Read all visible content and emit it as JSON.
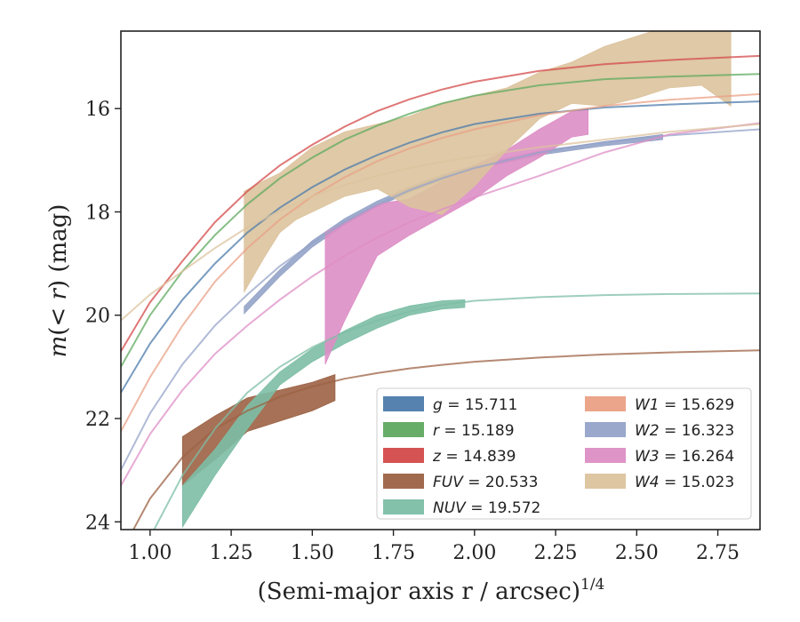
{
  "chart_data": {
    "type": "area",
    "xlabel": "(Semi-major axis r / arcsec)",
    "xlabel_sup": "1/4",
    "ylabel_parts": [
      "m",
      "(< ",
      "r",
      ") (mag)"
    ],
    "xlim": [
      0.91,
      2.88
    ],
    "ylim": [
      24.15,
      14.5
    ],
    "y_inverted": true,
    "xticks": [
      "1.00",
      "1.25",
      "1.50",
      "1.75",
      "2.00",
      "2.25",
      "2.50",
      "2.75"
    ],
    "xtick_values": [
      1.0,
      1.25,
      1.5,
      1.75,
      2.0,
      2.25,
      2.5,
      2.75
    ],
    "yticks": [
      "16",
      "18",
      "20",
      "22",
      "24"
    ],
    "ytick_values": [
      16,
      18,
      20,
      22,
      24
    ],
    "legend_position": "lower-right",
    "series": [
      {
        "name": "g = 15.711",
        "label_var": "g",
        "label_val": "15.711",
        "color": "#4c7bab",
        "model_x": [
          0.91,
          1.0,
          1.1,
          1.2,
          1.3,
          1.4,
          1.5,
          1.6,
          1.7,
          1.8,
          1.9,
          2.0,
          2.2,
          2.4,
          2.6,
          2.88
        ],
        "model_y": [
          21.5,
          20.55,
          19.7,
          19.0,
          18.4,
          17.92,
          17.52,
          17.18,
          16.9,
          16.66,
          16.46,
          16.3,
          16.1,
          15.98,
          15.92,
          15.86
        ],
        "band_x": [],
        "band_lo": [],
        "band_hi": []
      },
      {
        "name": "r = 15.189",
        "label_var": "r",
        "label_val": "15.189",
        "color": "#5fa95f",
        "model_x": [
          0.91,
          1.0,
          1.1,
          1.2,
          1.3,
          1.4,
          1.5,
          1.6,
          1.7,
          1.8,
          1.9,
          2.0,
          2.2,
          2.4,
          2.6,
          2.88
        ],
        "model_y": [
          21.0,
          20.0,
          19.15,
          18.45,
          17.85,
          17.35,
          16.95,
          16.6,
          16.33,
          16.1,
          15.9,
          15.75,
          15.55,
          15.43,
          15.38,
          15.33
        ],
        "band_x": [],
        "band_lo": [],
        "band_hi": []
      },
      {
        "name": "z = 14.839",
        "label_var": "z",
        "label_val": "14.839",
        "color": "#d44a4a",
        "model_x": [
          0.91,
          1.0,
          1.1,
          1.2,
          1.3,
          1.4,
          1.5,
          1.6,
          1.7,
          1.8,
          1.9,
          2.0,
          2.2,
          2.4,
          2.6,
          2.88
        ],
        "model_y": [
          20.7,
          19.75,
          18.95,
          18.2,
          17.6,
          17.1,
          16.7,
          16.35,
          16.05,
          15.82,
          15.63,
          15.48,
          15.27,
          15.14,
          15.06,
          14.98
        ],
        "band_x": [],
        "band_lo": [],
        "band_hi": []
      },
      {
        "name": "FUV = 20.533",
        "label_var": "FUV",
        "label_val": "20.533",
        "color": "#9c6244",
        "model_x": [
          0.91,
          1.0,
          1.1,
          1.2,
          1.3,
          1.4,
          1.5,
          1.6,
          1.7,
          1.8,
          1.9,
          2.0,
          2.2,
          2.4,
          2.6,
          2.88
        ],
        "model_y": [
          24.6,
          23.55,
          22.75,
          22.2,
          21.85,
          21.58,
          21.38,
          21.23,
          21.12,
          21.03,
          20.96,
          20.9,
          20.82,
          20.76,
          20.72,
          20.68
        ],
        "band_x": [
          1.1,
          1.2,
          1.3,
          1.4,
          1.5,
          1.57
        ],
        "band_lo": [
          23.3,
          22.8,
          22.25,
          22.05,
          21.85,
          21.65
        ],
        "band_hi": [
          22.35,
          21.95,
          21.6,
          21.45,
          21.3,
          21.15
        ]
      },
      {
        "name": "NUV = 19.572",
        "label_var": "NUV",
        "label_val": "19.572",
        "color": "#7dbea6",
        "model_x": [
          0.91,
          1.0,
          1.1,
          1.2,
          1.3,
          1.4,
          1.5,
          1.6,
          1.7,
          1.8,
          1.9,
          2.0,
          2.2,
          2.4,
          2.6,
          2.88
        ],
        "model_y": [
          25.8,
          24.3,
          23.1,
          22.2,
          21.5,
          21.0,
          20.62,
          20.33,
          20.1,
          19.93,
          19.8,
          19.72,
          19.65,
          19.61,
          19.59,
          19.58
        ],
        "band_x": [
          1.1,
          1.2,
          1.3,
          1.4,
          1.5,
          1.6,
          1.7,
          1.8,
          1.9,
          1.97
        ],
        "band_lo": [
          24.1,
          23.1,
          22.2,
          21.35,
          20.9,
          20.55,
          20.25,
          20.0,
          19.88,
          19.85
        ],
        "band_hi": [
          23.3,
          22.6,
          21.75,
          21.1,
          20.65,
          20.3,
          20.0,
          19.82,
          19.72,
          19.7
        ]
      },
      {
        "name": "W1 = 15.629",
        "label_var": "W1",
        "label_val": "15.629",
        "color": "#eaa085",
        "model_x": [
          0.91,
          1.0,
          1.1,
          1.2,
          1.3,
          1.4,
          1.5,
          1.6,
          1.7,
          1.8,
          1.9,
          2.0,
          2.2,
          2.4,
          2.6,
          2.88
        ],
        "model_y": [
          22.25,
          21.2,
          20.2,
          19.35,
          18.7,
          18.15,
          17.7,
          17.33,
          17.02,
          16.77,
          16.57,
          16.4,
          16.13,
          15.95,
          15.83,
          15.72
        ],
        "band_x": [],
        "band_lo": [],
        "band_hi": []
      },
      {
        "name": "W2 = 16.323",
        "label_var": "W2",
        "label_val": "16.323",
        "color": "#94a3c8",
        "model_x": [
          0.91,
          1.0,
          1.1,
          1.2,
          1.3,
          1.4,
          1.5,
          1.6,
          1.7,
          1.8,
          1.9,
          2.0,
          2.2,
          2.4,
          2.6,
          2.88
        ],
        "model_y": [
          23.0,
          21.9,
          20.95,
          20.2,
          19.6,
          19.05,
          18.6,
          18.2,
          17.86,
          17.58,
          17.35,
          17.15,
          16.85,
          16.65,
          16.52,
          16.4
        ],
        "band_x": [
          1.29,
          1.4,
          1.5,
          1.6,
          1.7,
          1.8,
          1.9,
          2.0,
          2.2,
          2.4,
          2.58
        ],
        "band_lo": [
          19.97,
          19.25,
          18.68,
          18.25,
          17.9,
          17.62,
          17.38,
          17.18,
          16.9,
          16.72,
          16.6
        ],
        "band_hi": [
          19.83,
          19.12,
          18.56,
          18.13,
          17.79,
          17.52,
          17.29,
          17.1,
          16.82,
          16.64,
          16.5
        ]
      },
      {
        "name": "W3 = 16.264",
        "label_var": "W3",
        "label_val": "16.264",
        "color": "#dd8ec5",
        "model_x": [
          0.91,
          1.0,
          1.1,
          1.2,
          1.3,
          1.4,
          1.5,
          1.6,
          1.7,
          1.8,
          1.9,
          2.0,
          2.2,
          2.4,
          2.6,
          2.88
        ],
        "model_y": [
          23.3,
          22.3,
          21.45,
          20.75,
          20.2,
          19.7,
          19.25,
          18.85,
          18.5,
          18.2,
          17.95,
          17.72,
          17.3,
          16.85,
          16.5,
          16.28
        ],
        "band_x": [
          1.54,
          1.6,
          1.7,
          1.8,
          1.9,
          2.0,
          2.1,
          2.2,
          2.3,
          2.35
        ],
        "band_lo": [
          20.95,
          20.1,
          18.85,
          18.45,
          18.1,
          17.75,
          17.3,
          16.95,
          16.55,
          16.5
        ],
        "band_hi": [
          18.4,
          18.2,
          17.85,
          17.75,
          17.4,
          17.1,
          16.8,
          16.4,
          16.05,
          16.0
        ]
      },
      {
        "name": "W4 = 15.023",
        "label_var": "W4",
        "label_val": "15.023",
        "color": "#dcc39d",
        "model_x": [
          0.91,
          1.0,
          1.1,
          1.2,
          1.3,
          1.4,
          1.5,
          1.6,
          1.7,
          1.8,
          1.9,
          2.0,
          2.2,
          2.4,
          2.6,
          2.88
        ],
        "model_y": [
          20.1,
          19.6,
          19.15,
          18.7,
          18.3,
          17.98,
          17.7,
          17.48,
          17.3,
          17.15,
          17.03,
          16.93,
          16.75,
          16.6,
          16.45,
          16.3
        ],
        "band_x": [
          1.29,
          1.35,
          1.4,
          1.45,
          1.5,
          1.55,
          1.6,
          1.7,
          1.8,
          1.9,
          2.0,
          2.1,
          2.2,
          2.3,
          2.4,
          2.5,
          2.6,
          2.7,
          2.79
        ],
        "band_lo": [
          19.55,
          18.9,
          18.4,
          18.15,
          18.0,
          17.85,
          17.7,
          17.55,
          17.9,
          18.05,
          17.5,
          16.8,
          16.2,
          15.9,
          15.95,
          15.8,
          15.6,
          15.55,
          15.95
        ],
        "band_hi": [
          17.6,
          17.4,
          17.25,
          17.0,
          16.75,
          16.6,
          16.45,
          16.3,
          16.15,
          15.9,
          15.75,
          15.6,
          15.3,
          15.1,
          14.8,
          14.6,
          14.4,
          14.3,
          14.3
        ]
      }
    ]
  }
}
